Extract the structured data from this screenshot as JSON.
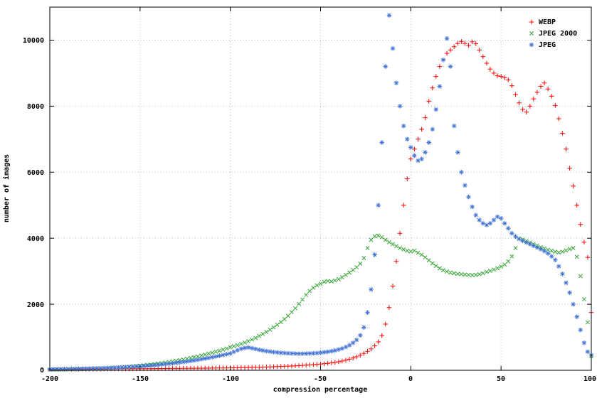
{
  "page": {
    "background": "#ffffff"
  },
  "chart_data": {
    "type": "scatter",
    "title": "",
    "xlabel": "compression percentage",
    "ylabel": "number of images",
    "xlim": [
      -200,
      100
    ],
    "ylim": [
      0,
      11000
    ],
    "xticks": [
      -200,
      -150,
      -100,
      -50,
      0,
      50,
      100
    ],
    "yticks": [
      0,
      2000,
      4000,
      6000,
      8000,
      10000
    ],
    "grid": true,
    "grid_color": "#b8b8b8",
    "border_color": "#000000",
    "legend_position": "top-right-inside",
    "x_start": -200,
    "x_step": 2,
    "series": [
      {
        "name": "WEBP",
        "marker": "plus",
        "color": "#ff0000",
        "values": [
          25,
          28,
          26,
          30,
          27,
          32,
          30,
          33,
          31,
          35,
          34,
          36,
          35,
          38,
          37,
          40,
          38,
          42,
          40,
          44,
          43,
          45,
          44,
          47,
          46,
          48,
          47,
          50,
          49,
          52,
          51,
          54,
          53,
          56,
          55,
          58,
          57,
          60,
          59,
          62,
          61,
          64,
          63,
          66,
          65,
          68,
          67,
          70,
          69,
          72,
          74,
          76,
          78,
          80,
          82,
          85,
          88,
          90,
          93,
          96,
          100,
          104,
          108,
          112,
          116,
          120,
          125,
          130,
          136,
          142,
          148,
          155,
          162,
          170,
          178,
          188,
          198,
          210,
          224,
          240,
          258,
          280,
          305,
          335,
          370,
          410,
          455,
          510,
          575,
          650,
          740,
          860,
          1050,
          1400,
          1900,
          2550,
          3300,
          4150,
          5000,
          5800,
          6400,
          6700,
          7000,
          7300,
          7650,
          8150,
          8550,
          8900,
          9200,
          9400,
          9600,
          9700,
          9800,
          9900,
          9960,
          9900,
          9840,
          9950,
          9890,
          9700,
          9500,
          9300,
          9120,
          9000,
          8920,
          8900,
          8860,
          8800,
          8620,
          8350,
          8100,
          7900,
          7820,
          8000,
          8220,
          8420,
          8600,
          8700,
          8520,
          8300,
          8020,
          7620,
          7180,
          6700,
          6120,
          5580,
          5000,
          4420,
          3880,
          3420,
          1750
        ]
      },
      {
        "name": "JPEG 2000",
        "marker": "cross",
        "color": "#30a330",
        "values": [
          18,
          20,
          21,
          23,
          25,
          27,
          29,
          32,
          35,
          38,
          41,
          45,
          49,
          53,
          58,
          63,
          68,
          74,
          80,
          87,
          94,
          102,
          110,
          119,
          129,
          139,
          150,
          162,
          175,
          188,
          202,
          217,
          233,
          250,
          268,
          287,
          307,
          328,
          350,
          373,
          397,
          422,
          448,
          475,
          503,
          532,
          562,
          593,
          625,
          660,
          700,
          730,
          760,
          800,
          840,
          880,
          930,
          980,
          1040,
          1100,
          1160,
          1230,
          1300,
          1380,
          1460,
          1550,
          1650,
          1760,
          1880,
          2010,
          2140,
          2280,
          2400,
          2500,
          2570,
          2620,
          2680,
          2700,
          2690,
          2720,
          2760,
          2820,
          2890,
          2960,
          3040,
          3120,
          3230,
          3400,
          3700,
          3950,
          4060,
          4080,
          4030,
          3950,
          3880,
          3820,
          3760,
          3700,
          3660,
          3620,
          3600,
          3620,
          3560,
          3500,
          3420,
          3330,
          3240,
          3160,
          3090,
          3030,
          2990,
          2960,
          2940,
          2920,
          2910,
          2900,
          2890,
          2880,
          2890,
          2910,
          2940,
          2980,
          3010,
          3050,
          3090,
          3140,
          3200,
          3300,
          3450,
          3700,
          3980,
          3960,
          3910,
          3870,
          3820,
          3780,
          3730,
          3690,
          3650,
          3620,
          3590,
          3570,
          3590,
          3630,
          3670,
          3700,
          3440,
          2850,
          2150,
          1450,
          420
        ]
      },
      {
        "name": "JPEG",
        "marker": "asterisk",
        "color": "#4575d5",
        "values": [
          30,
          32,
          34,
          33,
          36,
          38,
          40,
          42,
          45,
          47,
          50,
          53,
          56,
          59,
          63,
          67,
          71,
          75,
          80,
          85,
          90,
          96,
          102,
          108,
          115,
          122,
          130,
          138,
          147,
          156,
          166,
          176,
          187,
          199,
          211,
          224,
          238,
          252,
          267,
          283,
          300,
          318,
          336,
          355,
          375,
          396,
          418,
          440,
          463,
          487,
          512,
          560,
          610,
          650,
          675,
          690,
          670,
          645,
          620,
          600,
          582,
          566,
          552,
          540,
          530,
          522,
          515,
          510,
          506,
          504,
          504,
          506,
          510,
          516,
          524,
          534,
          546,
          560,
          578,
          600,
          628,
          662,
          704,
          760,
          830,
          920,
          1060,
          1300,
          1750,
          2450,
          3500,
          5000,
          6900,
          9200,
          10750,
          9750,
          8700,
          8000,
          7400,
          7000,
          6750,
          6500,
          6350,
          6400,
          6600,
          6900,
          7300,
          7900,
          8600,
          9400,
          10050,
          9200,
          7400,
          6600,
          6000,
          5600,
          5250,
          4950,
          4700,
          4550,
          4450,
          4400,
          4450,
          4550,
          4650,
          4600,
          4450,
          4300,
          4150,
          4050,
          3980,
          3920,
          3870,
          3820,
          3770,
          3720,
          3670,
          3610,
          3540,
          3450,
          3340,
          3150,
          2920,
          2650,
          2350,
          2000,
          1620,
          1220,
          830,
          560,
          460
        ]
      }
    ]
  }
}
